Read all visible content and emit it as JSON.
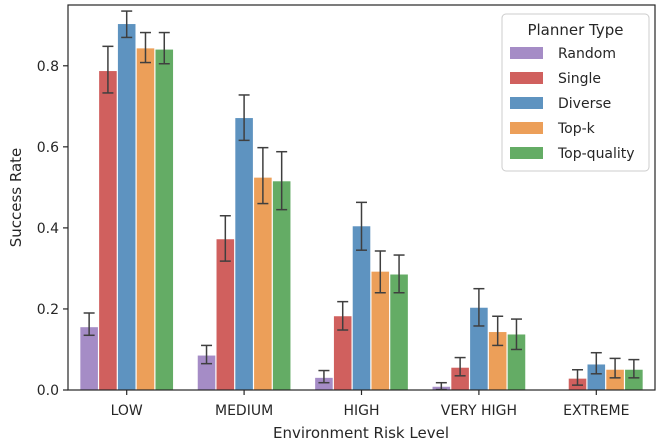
{
  "chart_data": {
    "type": "bar",
    "title": "",
    "xlabel": "Environment Risk Level",
    "ylabel": "Success Rate",
    "categories": [
      "LOW",
      "MEDIUM",
      "HIGH",
      "VERY HIGH",
      "EXTREME"
    ],
    "ylim": [
      0,
      0.95
    ],
    "yticks": [
      "0.0",
      "0.2",
      "0.4",
      "0.6",
      "0.8"
    ],
    "grid": false,
    "legend": {
      "title": "Planner Type",
      "placement": "top-right"
    },
    "series": [
      {
        "name": "Random",
        "color": "#a58cc6",
        "values": [
          0.155,
          0.085,
          0.03,
          0.008,
          0.0
        ],
        "err_low": [
          0.135,
          0.065,
          0.018,
          0.001,
          0.0
        ],
        "err_high": [
          0.19,
          0.11,
          0.048,
          0.018,
          0.0
        ]
      },
      {
        "name": "Single",
        "color": "#d0605e",
        "values": [
          0.787,
          0.372,
          0.182,
          0.055,
          0.028
        ],
        "err_low": [
          0.733,
          0.318,
          0.148,
          0.035,
          0.012
        ],
        "err_high": [
          0.848,
          0.43,
          0.218,
          0.08,
          0.05
        ]
      },
      {
        "name": "Diverse",
        "color": "#5e93c0",
        "values": [
          0.903,
          0.671,
          0.404,
          0.203,
          0.063
        ],
        "err_low": [
          0.87,
          0.616,
          0.345,
          0.158,
          0.04
        ],
        "err_high": [
          0.935,
          0.728,
          0.463,
          0.25,
          0.092
        ]
      },
      {
        "name": "Top-k",
        "color": "#ec9f59",
        "values": [
          0.843,
          0.524,
          0.292,
          0.143,
          0.05
        ],
        "err_low": [
          0.808,
          0.46,
          0.24,
          0.11,
          0.03
        ],
        "err_high": [
          0.882,
          0.598,
          0.343,
          0.182,
          0.078
        ]
      },
      {
        "name": "Top-quality",
        "color": "#64ac65",
        "values": [
          0.84,
          0.515,
          0.285,
          0.137,
          0.05
        ],
        "err_low": [
          0.805,
          0.445,
          0.24,
          0.1,
          0.03
        ],
        "err_high": [
          0.882,
          0.588,
          0.333,
          0.175,
          0.075
        ]
      }
    ]
  }
}
